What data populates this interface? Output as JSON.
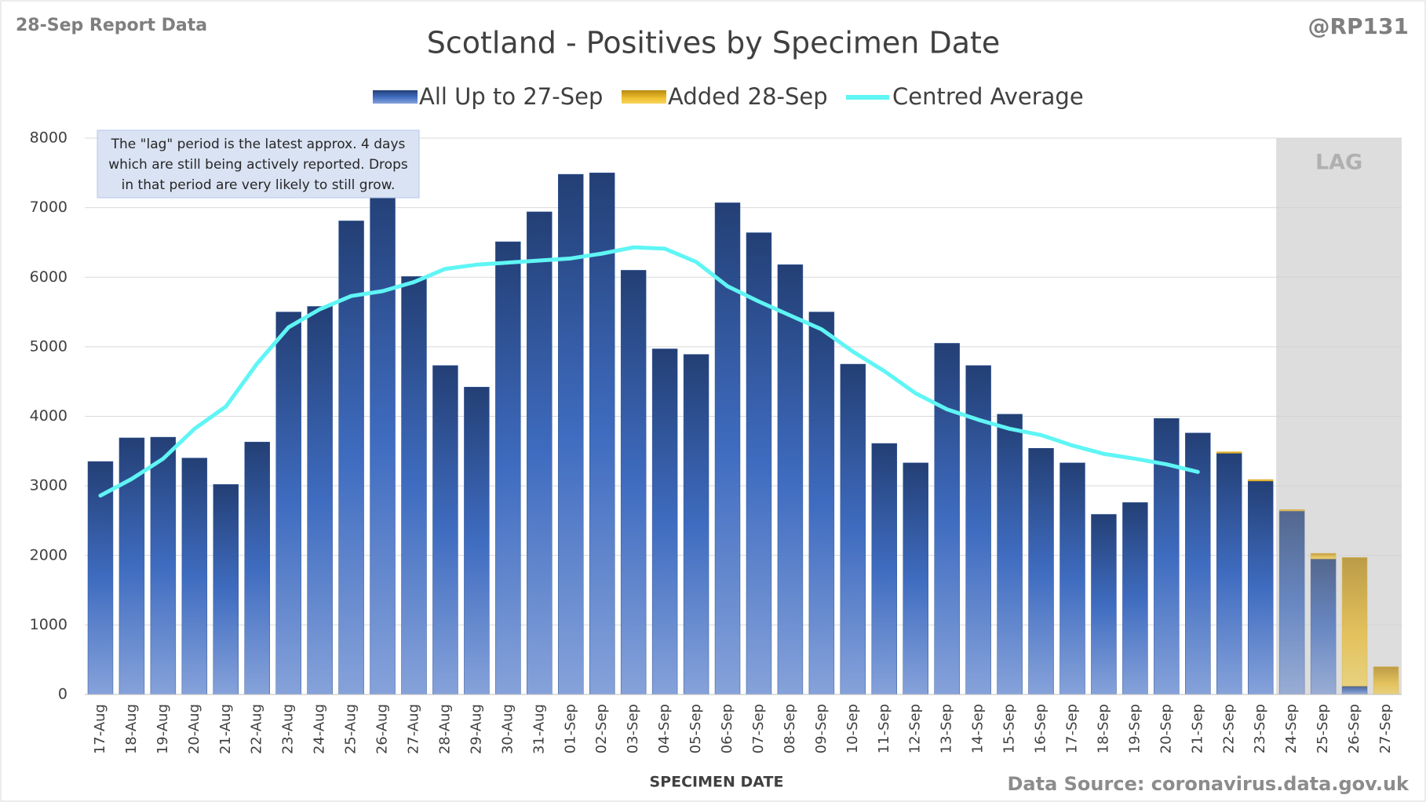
{
  "chart_data": {
    "type": "bar",
    "header": "28-Sep Report Data",
    "handle": "@RP131",
    "title": "Scotland - Positives by Specimen Date",
    "note": [
      "The \"lag\" period is the latest approx. 4 days",
      "which are still being actively reported.  Drops",
      "in that period are very likely to still grow."
    ],
    "lag_label": "LAG",
    "x_label": "SPECIMEN DATE",
    "source": "Data Source: coronavirus.data.gov.uk",
    "categories": [
      "17-Aug",
      "18-Aug",
      "19-Aug",
      "20-Aug",
      "21-Aug",
      "22-Aug",
      "23-Aug",
      "24-Aug",
      "25-Aug",
      "26-Aug",
      "27-Aug",
      "28-Aug",
      "29-Aug",
      "30-Aug",
      "31-Aug",
      "01-Sep",
      "02-Sep",
      "03-Sep",
      "04-Sep",
      "05-Sep",
      "06-Sep",
      "07-Sep",
      "08-Sep",
      "09-Sep",
      "10-Sep",
      "11-Sep",
      "12-Sep",
      "13-Sep",
      "14-Sep",
      "15-Sep",
      "16-Sep",
      "17-Sep",
      "18-Sep",
      "19-Sep",
      "20-Sep",
      "21-Sep",
      "22-Sep",
      "23-Sep",
      "24-Sep",
      "25-Sep",
      "26-Sep",
      "27-Sep"
    ],
    "series": [
      {
        "name": "All Up to 27-Sep",
        "color": "#2f5597",
        "values": [
          3350,
          3690,
          3700,
          3400,
          3020,
          3630,
          5500,
          5580,
          6810,
          7300,
          6010,
          4730,
          4420,
          6510,
          6940,
          7480,
          7500,
          6100,
          4970,
          4890,
          7070,
          6640,
          6180,
          5500,
          4750,
          3610,
          3330,
          5050,
          4730,
          4030,
          3540,
          3330,
          2590,
          2760,
          3970,
          3760,
          3470,
          3070,
          2640,
          1950,
          120,
          0
        ]
      },
      {
        "name": "Added 28-Sep",
        "color": "#e6b020",
        "values": [
          0,
          0,
          0,
          0,
          0,
          0,
          0,
          0,
          0,
          0,
          0,
          0,
          0,
          0,
          0,
          0,
          0,
          0,
          0,
          0,
          0,
          0,
          0,
          0,
          0,
          0,
          0,
          0,
          0,
          0,
          0,
          0,
          0,
          0,
          0,
          0,
          20,
          20,
          20,
          80,
          1850,
          400
        ]
      },
      {
        "name": "Centred Average",
        "type": "line",
        "color": "#5ff5f5",
        "values": [
          2860,
          3100,
          3390,
          3820,
          4140,
          4760,
          5280,
          5540,
          5730,
          5800,
          5930,
          6120,
          6180,
          6210,
          6240,
          6270,
          6340,
          6430,
          6410,
          6220,
          5870,
          5650,
          5450,
          5250,
          4930,
          4650,
          4330,
          4100,
          3950,
          3820,
          3730,
          3580,
          3460,
          3390,
          3310,
          3200,
          null,
          null,
          null,
          null,
          null,
          null
        ]
      }
    ],
    "ylim": [
      0,
      8000
    ],
    "yticks": [
      0,
      1000,
      2000,
      3000,
      4000,
      5000,
      6000,
      7000,
      8000
    ],
    "grid": true
  }
}
